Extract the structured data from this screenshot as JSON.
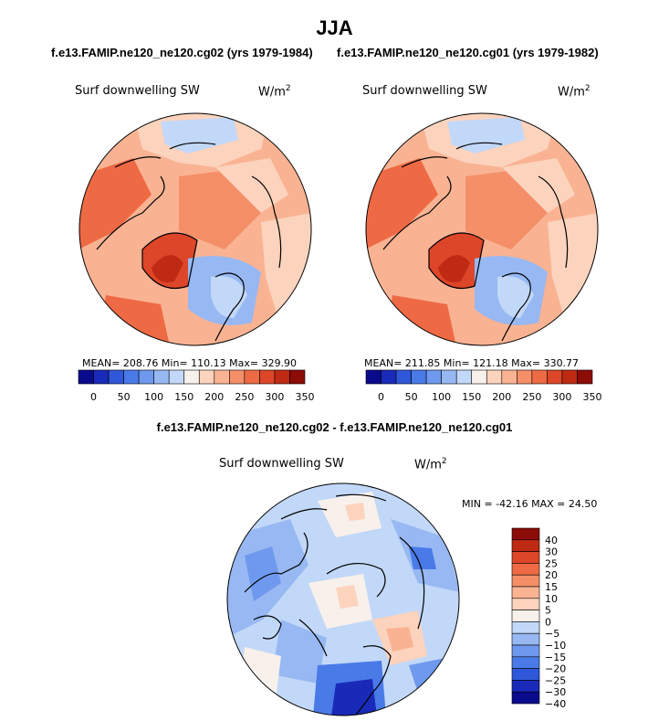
{
  "page_title": "JJA",
  "panels": [
    {
      "case_title": "f.e13.FAMIP.ne120_ne120.cg02 (yrs 1979-1984)",
      "variable_label": "Surf downwelling SW",
      "units_base": "W/m",
      "units_exp": "2",
      "stats_text": "MEAN= 208.76  Min= 110.13  Max= 329.90",
      "stats": {
        "mean": 208.76,
        "min": 110.13,
        "max": 329.9
      }
    },
    {
      "case_title": "f.e13.FAMIP.ne120_ne120.cg01 (yrs 1979-1982)",
      "variable_label": "Surf downwelling SW",
      "units_base": "W/m",
      "units_exp": "2",
      "stats_text": "MEAN= 211.85  Min= 121.18  Max= 330.77",
      "stats": {
        "mean": 211.85,
        "min": 121.18,
        "max": 330.77
      }
    }
  ],
  "colorbar_top": {
    "colors": [
      "#0a0a8c",
      "#1a2ab8",
      "#2f57d9",
      "#4a7ae8",
      "#6f99ee",
      "#97b8f2",
      "#c2d8f8",
      "#f8f0ea",
      "#fcd3bd",
      "#f9b393",
      "#f48f68",
      "#ee6a45",
      "#dd4628",
      "#bf2a14",
      "#8c0c08"
    ],
    "tick_labels": [
      "0",
      "50",
      "100",
      "150",
      "200",
      "250",
      "300",
      "350"
    ]
  },
  "diff": {
    "title": "f.e13.FAMIP.ne120_ne120.cg02 - f.e13.FAMIP.ne120_ne120.cg01",
    "variable_label": "Surf downwelling SW",
    "units_base": "W/m",
    "units_exp": "2",
    "minmax_text": "MIN = -42.16 MAX =  24.50",
    "min": -42.16,
    "max": 24.5
  },
  "colorbar_diff": {
    "colors": [
      "#8c0c08",
      "#bf2a14",
      "#dd4628",
      "#ee6a45",
      "#f48f68",
      "#f9b393",
      "#fcd3bd",
      "#f8f0ea",
      "#c2d8f8",
      "#97b8f2",
      "#6f99ee",
      "#4a7ae8",
      "#2f57d9",
      "#1a2ab8",
      "#0a0a8c"
    ],
    "tick_labels": [
      "40",
      "30",
      "25",
      "20",
      "15",
      "10",
      "5",
      "0",
      "−5",
      "−10",
      "−15",
      "−20",
      "−25",
      "−30",
      "−40"
    ]
  }
}
